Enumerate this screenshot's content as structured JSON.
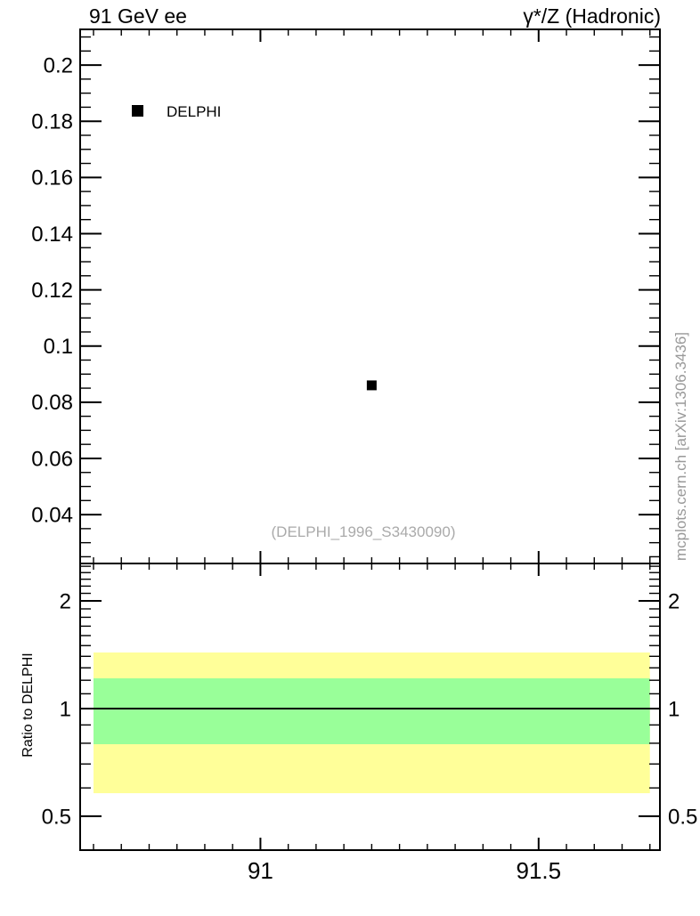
{
  "figure": {
    "background": "#ffffff",
    "frame_color": "#000000"
  },
  "chart_data": {
    "type": "scatter",
    "titles": {
      "left": "91 GeV ee",
      "right": "γ*/Z (Hadronic)"
    },
    "watermark": "(DELPHI_1996_S3430090)",
    "side_note": "mcplots.cern.ch [arXiv:1306.3436]",
    "legend": [
      {
        "label": "DELPHI",
        "marker": "filled-square",
        "color": "#000000"
      }
    ],
    "colors": {
      "band_outer": "#ffff99",
      "band_inner": "#99ff99",
      "watermark_gray": "#aaaaaa",
      "note_gray": "#999999"
    },
    "main_panel": {
      "yscale": "linear",
      "xlim": [
        90.676,
        91.718
      ],
      "ylim": [
        0.0226,
        0.2127
      ],
      "x_ticks": {
        "major": [
          91,
          91.5
        ],
        "major_labels": [
          "91",
          "91.5"
        ],
        "minor_step": 0.05,
        "minor_range": [
          90.7,
          91.7
        ]
      },
      "y_ticks": {
        "major": [
          0.04,
          0.06,
          0.08,
          0.1,
          0.12,
          0.14,
          0.16,
          0.18,
          0.2
        ],
        "major_labels": [
          "0.04",
          "0.06",
          "0.08",
          "0.1",
          "0.12",
          "0.14",
          "0.16",
          "0.18",
          "0.2"
        ],
        "minor_step": 0.005,
        "minor_range": [
          0.025,
          0.21
        ]
      },
      "series": [
        {
          "name": "DELPHI",
          "marker": "filled-square",
          "marker_size": 11,
          "color": "#000000",
          "points": [
            {
              "x": 91.2,
              "y": 0.086
            }
          ]
        }
      ]
    },
    "ratio_panel": {
      "ylabel": "Ratio to DELPHI",
      "yscale": "log",
      "ylim": [
        0.402,
        2.545
      ],
      "y_ticks": {
        "major": [
          0.5,
          1,
          2
        ],
        "major_labels": [
          "0.5",
          "1",
          "2"
        ],
        "minor": [
          0.6,
          0.7,
          0.8,
          0.9,
          1.1,
          1.2,
          1.3,
          1.4,
          1.5,
          1.6,
          1.7,
          1.8,
          1.9,
          2.1,
          2.2,
          2.3,
          2.4,
          2.5
        ]
      },
      "reference_line_y": 1,
      "bands": [
        {
          "name": "outer-uncertainty-band",
          "color": "#ffff99",
          "x": [
            90.7,
            91.7
          ],
          "y": [
            0.58,
            1.435
          ]
        },
        {
          "name": "inner-uncertainty-band",
          "color": "#99ff99",
          "x": [
            90.7,
            91.7
          ],
          "y": [
            0.795,
            1.215
          ]
        }
      ]
    }
  }
}
